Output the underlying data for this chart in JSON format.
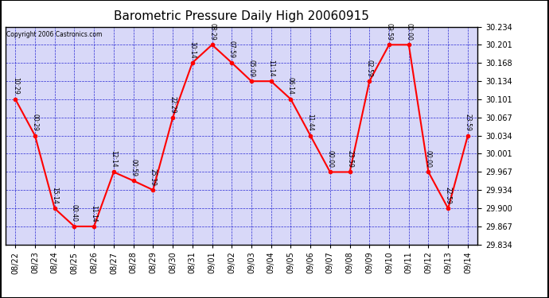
{
  "title": "Barometric Pressure Daily High 20060915",
  "copyright": "Copyright 2006 Castronics.com",
  "x_labels": [
    "08/22",
    "08/23",
    "08/24",
    "08/25",
    "08/26",
    "08/27",
    "08/28",
    "08/29",
    "08/30",
    "08/31",
    "09/01",
    "09/02",
    "09/03",
    "09/04",
    "09/05",
    "09/06",
    "09/07",
    "09/08",
    "09/09",
    "09/10",
    "09/11",
    "09/12",
    "09/13",
    "09/14"
  ],
  "y_values": [
    30.101,
    30.034,
    29.9,
    29.867,
    29.867,
    29.967,
    29.951,
    29.934,
    30.067,
    30.168,
    30.201,
    30.168,
    30.134,
    30.134,
    30.101,
    30.034,
    29.967,
    29.967,
    30.134,
    30.201,
    30.201,
    29.967,
    29.9,
    30.034
  ],
  "annotations": [
    "10:29",
    "00:29",
    "15:14",
    "00:40",
    "11:14",
    "12:14",
    "00:59",
    "25:39",
    "22:29",
    "10:14",
    "08:29",
    "07:59",
    "05:09",
    "11:14",
    "06:14",
    "11:44",
    "00:00",
    "23:59",
    "02:59",
    "09:59",
    "00:00",
    "00:00",
    "22:59",
    "23:59"
  ],
  "line_color": "#ff0000",
  "marker_color": "#ff0000",
  "grid_color": "#0000cc",
  "background_color": "#ffffff",
  "plot_bg_color": "#d8d8f8",
  "text_color": "#000000",
  "ylim_min": 29.834,
  "ylim_max": 30.234,
  "yticks": [
    29.834,
    29.867,
    29.9,
    29.934,
    29.967,
    30.001,
    30.034,
    30.067,
    30.101,
    30.134,
    30.168,
    30.201,
    30.234
  ],
  "title_fontsize": 11,
  "annot_fontsize": 5.5,
  "tick_fontsize": 7
}
